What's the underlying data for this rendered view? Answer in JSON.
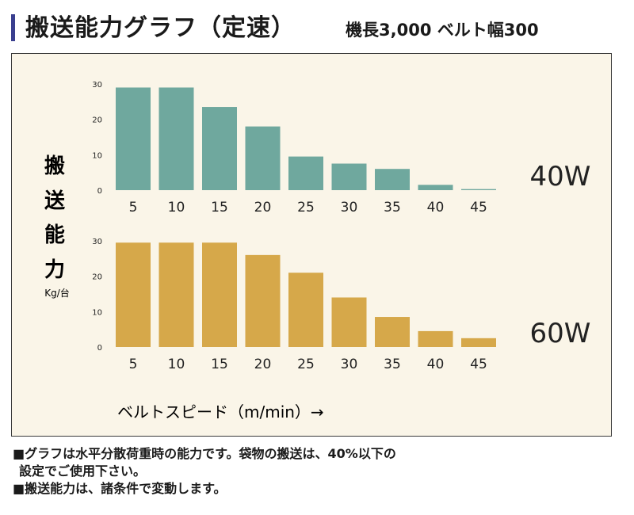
{
  "header": {
    "title": "搬送能力グラフ（定速）",
    "subtitle": "機長3,000 ベルト幅300"
  },
  "chart_data": [
    {
      "type": "bar",
      "series_label": "40W",
      "categories": [
        "5",
        "10",
        "15",
        "20",
        "25",
        "30",
        "35",
        "40",
        "45"
      ],
      "values": [
        29,
        29,
        23.5,
        18,
        9.5,
        7.5,
        6,
        1.5,
        0.3
      ],
      "y_ticks": [
        "0",
        "10",
        "20",
        "30"
      ],
      "ylim": [
        0,
        30
      ],
      "color": "#6fa89e"
    },
    {
      "type": "bar",
      "series_label": "60W",
      "categories": [
        "5",
        "10",
        "15",
        "20",
        "25",
        "30",
        "35",
        "40",
        "45"
      ],
      "values": [
        29.5,
        29.5,
        29.5,
        26,
        21,
        14,
        8.5,
        4.5,
        2.5
      ],
      "y_ticks": [
        "0",
        "10",
        "20",
        "30"
      ],
      "ylim": [
        0,
        30
      ],
      "color": "#d6a84a"
    }
  ],
  "axis": {
    "ylabel_chars": [
      "搬",
      "送",
      "能",
      "力"
    ],
    "ylabel_unit": "Kg/台",
    "xlabel": "ベルトスピード（m/min）→"
  },
  "notes": {
    "line1": "■グラフは水平分散荷重時の能力です。袋物の搬送は、40%以下の",
    "line1_cont": "設定でご使用下さい。",
    "line2": "■搬送能力は、諸条件で変動します。"
  }
}
